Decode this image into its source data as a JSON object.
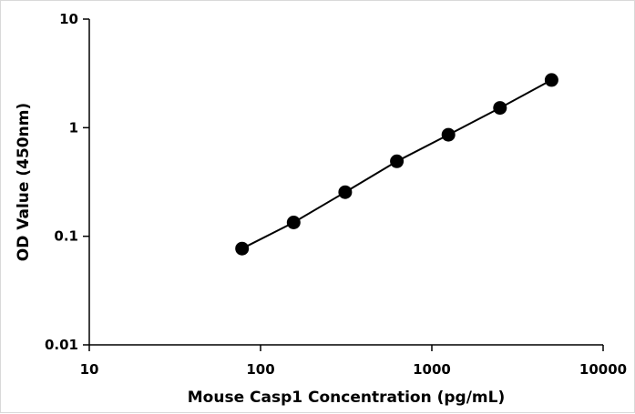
{
  "chart_data": {
    "type": "line",
    "title": "",
    "xlabel": "Mouse Casp1 Concentration (pg/mL)",
    "ylabel": "OD Value (450nm)",
    "xscale": "log",
    "yscale": "log",
    "xlim": [
      10,
      10000
    ],
    "ylim": [
      0.01,
      10
    ],
    "x_ticks": [
      "10",
      "100",
      "1000",
      "10000"
    ],
    "y_ticks": [
      "0.01",
      "0.1",
      "1",
      "10"
    ],
    "grid": false,
    "legend": "none",
    "series": [
      {
        "x": [
          78,
          156,
          312,
          625,
          1250,
          2500,
          5000
        ],
        "y": [
          0.077,
          0.134,
          0.255,
          0.49,
          0.86,
          1.52,
          2.75
        ]
      }
    ],
    "colors": {
      "line": "#000000",
      "marker": "#000000",
      "axis": "#000000"
    }
  }
}
